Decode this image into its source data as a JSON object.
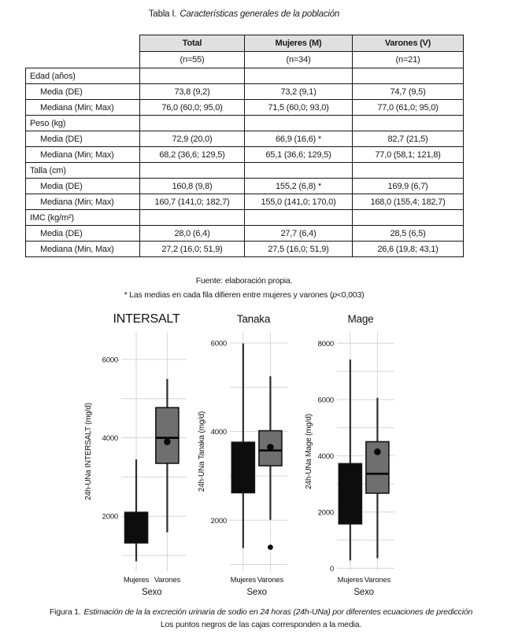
{
  "table": {
    "title_prefix": "Tabla I.",
    "title_italic": "Características generales de la población",
    "col_headers": [
      "Total",
      "Mujeres (M)",
      "Varones (V)"
    ],
    "col_subheaders": [
      "(n=55)",
      "(n=34)",
      "(n=21)"
    ],
    "rows": [
      {
        "label": "Edad (años)",
        "indent": false,
        "values": [
          "",
          "",
          ""
        ]
      },
      {
        "label": "Media (DE)",
        "indent": true,
        "values": [
          "73,8 (9,2)",
          "73,2 (9,1)",
          "74,7 (9,5)"
        ]
      },
      {
        "label": "Mediana (Min; Max)",
        "indent": true,
        "values": [
          "76,0 (60,0; 95,0)",
          "71,5 (60,0; 93,0)",
          "77,0 (61,0; 95,0)"
        ]
      },
      {
        "label": "Peso (kg)",
        "indent": false,
        "values": [
          "",
          "",
          ""
        ]
      },
      {
        "label": "Media (DE)",
        "indent": true,
        "values": [
          "72,9 (20,0)",
          "66,9 (16,6) *",
          "82,7 (21,5)"
        ]
      },
      {
        "label": "Mediana (Min; Max)",
        "indent": true,
        "values": [
          "68,2 (36,6; 129,5)",
          "65,1 (36,6; 129,5)",
          "77,0 (58,1; 121,8)"
        ]
      },
      {
        "label": "Talla (cm)",
        "indent": false,
        "values": [
          "",
          "",
          ""
        ]
      },
      {
        "label": "Media (DE)",
        "indent": true,
        "values": [
          "160,8 (9,8)",
          "155,2 (6,8) *",
          "169,9 (6,7)"
        ]
      },
      {
        "label": "Mediana (Min; Max)",
        "indent": true,
        "values": [
          "160,7 (141,0; 182,7)",
          "155,0 (141,0; 170,0)",
          "168,0 (155,4; 182,7)"
        ]
      },
      {
        "label": "IMC (kg/m²)",
        "indent": false,
        "values": [
          "",
          "",
          ""
        ]
      },
      {
        "label": "Media (DE)",
        "indent": true,
        "values": [
          "28,0 (6,4)",
          "27,7 (6,4)",
          "28,5 (6,5)"
        ]
      },
      {
        "label": "Mediana (Min, Max)",
        "indent": true,
        "values": [
          "27,2 (16,0; 51,9)",
          "27,5 (16,0; 51,9)",
          "26,6 (19,8; 43,1)"
        ]
      }
    ],
    "footnote_source": "Fuente: elaboración propia.",
    "footnote2_prefix": "* Las medias en cada fila difieren entre mujeres y varones (",
    "footnote2_italic": "p",
    "footnote2_suffix": "<0,003)"
  },
  "colors": {
    "box_female": "#0d0d0d",
    "box_male": "#6f6f6f",
    "grid": "#d6d6d6",
    "whisker": "#2e2e2e",
    "header_bg": "#e0e0e0"
  },
  "chart_data": [
    {
      "type": "boxplot",
      "title": "INTERSALT",
      "ylabel": "24h-UNa INTERSALT (mg/d)",
      "xlabel": "Sexo",
      "categories": [
        "Mujeres",
        "Varones"
      ],
      "ylim": [
        600,
        6700
      ],
      "yticks": [
        2000,
        4000,
        6000
      ],
      "grid": {
        "min": 1000,
        "max": 6000,
        "step": 1000
      },
      "boxes": [
        {
          "category": "Mujeres",
          "fill": "#0d0d0d",
          "whisker_low": 850,
          "q1": 1320,
          "median": null,
          "q3": 2100,
          "whisker_high": 3450,
          "mean": null,
          "outliers": []
        },
        {
          "category": "Varones",
          "fill": "#6f6f6f",
          "whisker_low": 1590,
          "q1": 3350,
          "median": 4000,
          "q3": 4770,
          "whisker_high": 5500,
          "mean": 3900,
          "outliers": []
        }
      ]
    },
    {
      "type": "boxplot",
      "title": "Tanaka",
      "ylabel": "24h-UNa Tanaka (mg/d)",
      "xlabel": "Sexo",
      "categories": [
        "Mujeres",
        "Varones"
      ],
      "ylim": [
        850,
        6250
      ],
      "yticks": [
        2000,
        4000,
        6000
      ],
      "grid": {
        "min": 1000,
        "max": 6000,
        "step": 1000
      },
      "boxes": [
        {
          "category": "Mujeres",
          "fill": "#0d0d0d",
          "whisker_low": 1370,
          "q1": 2620,
          "median": null,
          "q3": 3760,
          "whisker_high": 5990,
          "mean": null,
          "outliers": []
        },
        {
          "category": "Varones",
          "fill": "#6f6f6f",
          "whisker_low": 2010,
          "q1": 3230,
          "median": 3575,
          "q3": 4020,
          "whisker_high": 5250,
          "mean": 3650,
          "outliers": [
            1390
          ]
        }
      ]
    },
    {
      "type": "boxplot",
      "title": "Mage",
      "ylabel": "24h-UNa Mage (mg/d)",
      "xlabel": "Sexo",
      "categories": [
        "Mujeres",
        "Varones"
      ],
      "ylim": [
        -100,
        8400
      ],
      "yticks": [
        0,
        2000,
        4000,
        6000,
        8000
      ],
      "grid": {
        "min": 0,
        "max": 8000,
        "step": 1000
      },
      "boxes": [
        {
          "category": "Mujeres",
          "fill": "#0d0d0d",
          "whisker_low": 280,
          "q1": 1580,
          "median": null,
          "q3": 3720,
          "whisker_high": 7420,
          "mean": null,
          "outliers": []
        },
        {
          "category": "Varones",
          "fill": "#6f6f6f",
          "whisker_low": 360,
          "q1": 2670,
          "median": 3360,
          "q3": 4500,
          "whisker_high": 6060,
          "mean": 4140,
          "outliers": []
        }
      ]
    }
  ],
  "figure": {
    "caption_prefix": "Figura 1.",
    "caption_italic": "Estimación de la la excreción urinaria de sodio en 24 horas (24h-UNa) por diferentes ecuaciones de predicción",
    "caption_line2": "Los puntos negros de las cajas corresponden a la media."
  }
}
